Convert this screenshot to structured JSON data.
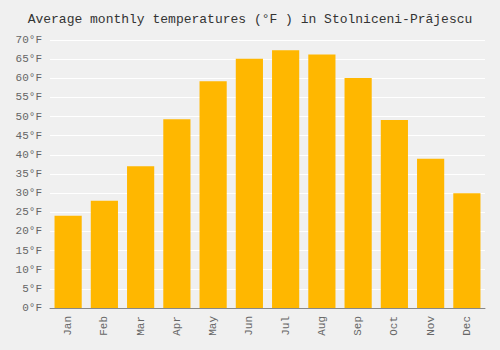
{
  "chart_data": {
    "type": "bar",
    "title": "Average monthly temperatures (°F ) in Stolniceni-Prăjescu",
    "categories": [
      "Jan",
      "Feb",
      "Mar",
      "Apr",
      "May",
      "Jun",
      "Jul",
      "Aug",
      "Sep",
      "Oct",
      "Nov",
      "Dec"
    ],
    "values": [
      24.1,
      28.0,
      37.0,
      49.3,
      59.2,
      65.1,
      67.3,
      66.2,
      60.1,
      49.1,
      39.0,
      30.0
    ],
    "color": "#FFB700",
    "ylim": [
      0,
      70
    ],
    "yticks": [
      {
        "value": 0,
        "label": "0°F"
      },
      {
        "value": 5,
        "label": "5°F"
      },
      {
        "value": 10,
        "label": "10°F"
      },
      {
        "value": 15,
        "label": "15°F"
      },
      {
        "value": 20,
        "label": "20°F"
      },
      {
        "value": 25,
        "label": "25°F"
      },
      {
        "value": 30,
        "label": "30°F"
      },
      {
        "value": 35,
        "label": "35°F"
      },
      {
        "value": 40,
        "label": "40°F"
      },
      {
        "value": 45,
        "label": "45°F"
      },
      {
        "value": 50,
        "label": "50°F"
      },
      {
        "value": 55,
        "label": "55°F"
      },
      {
        "value": 60,
        "label": "60°F"
      },
      {
        "value": 65,
        "label": "65°F"
      },
      {
        "value": 70,
        "label": "70°F"
      }
    ],
    "grid": true
  }
}
